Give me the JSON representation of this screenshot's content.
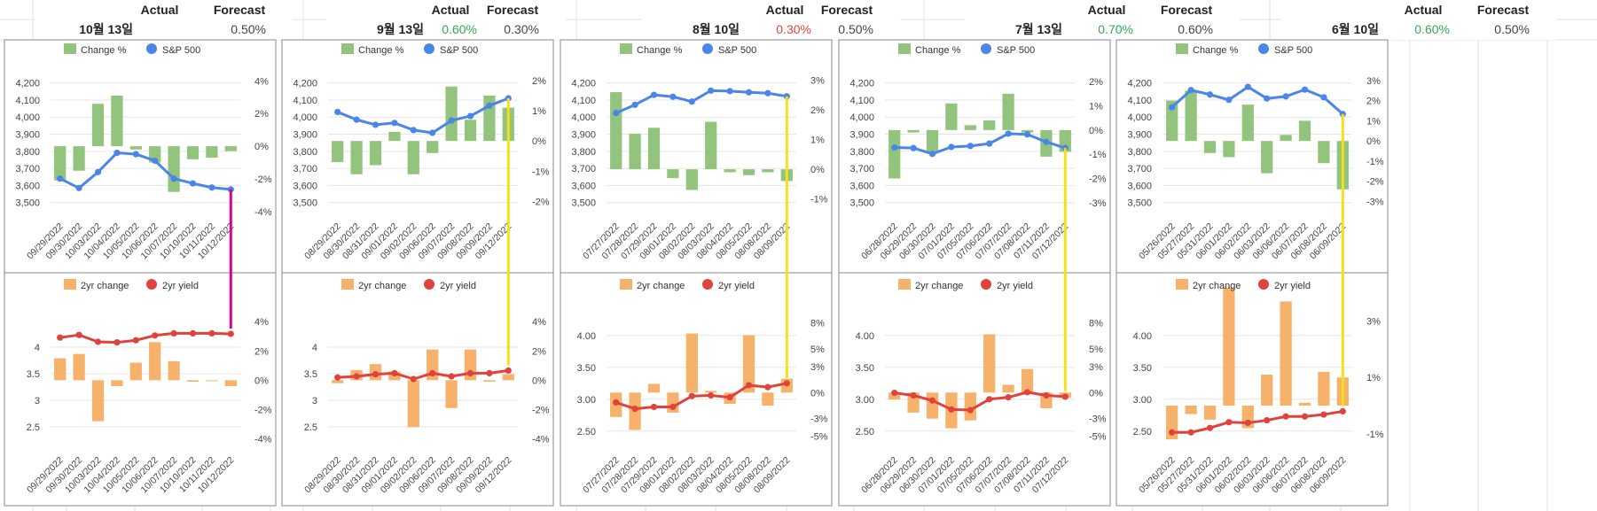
{
  "header_labels": {
    "actual": "Actual",
    "forecast": "Forecast"
  },
  "colors": {
    "change_bar": "#93c47d",
    "sp500_line": "#4a86e8",
    "yield_bar": "#f6b26b",
    "yield_line": "#e0433b",
    "marker_magenta": "#e0008a",
    "marker_yellow": "#f5e01a",
    "actual_up": "#34a853",
    "actual_down": "#ea4335"
  },
  "panels": [
    {
      "date": "10월 13일",
      "actual": "",
      "actual_color": "",
      "forecast": "0.50%",
      "marker_color": "#e0008a",
      "chart_data": [
        {
          "type": "bar+line",
          "legend": [
            "Change %",
            "S&P 500"
          ],
          "x": [
            "09/29/2022",
            "09/30/2022",
            "10/03/2022",
            "10/04/2022",
            "10/05/2022",
            "10/06/2022",
            "10/07/2022",
            "10/10/2022",
            "10/11/2022",
            "10/12/2022"
          ],
          "series": [
            {
              "name": "Change %",
              "axis": "right",
              "values": [
                -2.1,
                -1.5,
                2.6,
                3.1,
                -0.2,
                -1.0,
                -2.8,
                -0.8,
                -0.7,
                -0.3
              ]
            },
            {
              "name": "S&P 500",
              "axis": "left",
              "values": [
                3640,
                3585,
                3678,
                3791,
                3783,
                3745,
                3640,
                3612,
                3588,
                3577
              ]
            }
          ],
          "left_ticks": [
            "4,200",
            "4,100",
            "4,000",
            "3,900",
            "3,800",
            "3,700",
            "3,600",
            "3,500"
          ],
          "left_range": [
            3400,
            4250
          ],
          "right_ticks": [
            "4%",
            "2%",
            "0%",
            "-2%",
            "-4%"
          ],
          "right_range": [
            -4.5,
            4.4
          ]
        },
        {
          "type": "bar+line",
          "legend": [
            "2yr change",
            "2yr yield"
          ],
          "x": [
            "09/29/2022",
            "09/30/2022",
            "10/03/2022",
            "10/04/2022",
            "10/05/2022",
            "10/06/2022",
            "10/07/2022",
            "10/10/2022",
            "10/11/2022",
            "10/12/2022"
          ],
          "series": [
            {
              "name": "2yr change",
              "axis": "right",
              "values": [
                1.5,
                1.8,
                -2.8,
                -0.4,
                1.2,
                2.6,
                1.3,
                -0.1,
                0,
                -0.4
              ]
            },
            {
              "name": "2yr yield",
              "axis": "left",
              "values": [
                4.18,
                4.23,
                4.1,
                4.09,
                4.13,
                4.22,
                4.26,
                4.26,
                4.26,
                4.25
              ]
            }
          ],
          "left_ticks": [
            "4",
            "3.5",
            "3",
            "2.5"
          ],
          "left_range": [
            2.0,
            4.7
          ],
          "right_ticks": [
            "4%",
            "2%",
            "0%",
            "-2%",
            "-4%"
          ],
          "right_range": [
            -5,
            4.8
          ]
        }
      ]
    },
    {
      "date": "9월 13일",
      "actual": "0.60%",
      "actual_color": "#34a853",
      "forecast": "0.30%",
      "marker_color": "#f5e01a",
      "chart_data": [
        {
          "type": "bar+line",
          "legend": [
            "Change %",
            "S&P 500"
          ],
          "x": [
            "08/29/2022",
            "08/30/2022",
            "08/31/2022",
            "09/01/2022",
            "09/02/2022",
            "09/06/2022",
            "09/07/2022",
            "09/08/2022",
            "09/09/2022",
            "09/12/2022"
          ],
          "series": [
            {
              "name": "Change %",
              "axis": "right",
              "values": [
                -0.7,
                -1.1,
                -0.8,
                0.3,
                -1.1,
                -0.4,
                1.8,
                0.7,
                1.5,
                1.1
              ]
            },
            {
              "name": "S&P 500",
              "axis": "left",
              "values": [
                4030,
                3985,
                3955,
                3966,
                3924,
                3908,
                3980,
                4006,
                4067,
                4110
              ]
            }
          ],
          "left_ticks": [
            "4,200",
            "4,100",
            "4,000",
            "3,900",
            "3,800",
            "3,700",
            "3,600",
            "3,500"
          ],
          "left_range": [
            3400,
            4250
          ],
          "right_ticks": [
            "2%",
            "1%",
            "0%",
            "-1%",
            "-2%"
          ],
          "right_range": [
            -2.6,
            2.2
          ]
        },
        {
          "type": "bar+line",
          "legend": [
            "2yr change",
            "2yr yield"
          ],
          "x": [
            "08/29/2022",
            "08/30/2022",
            "08/31/2022",
            "09/01/2022",
            "09/02/2022",
            "09/06/2022",
            "09/07/2022",
            "09/08/2022",
            "09/09/2022",
            "09/12/2022"
          ],
          "series": [
            {
              "name": "2yr change",
              "axis": "right",
              "values": [
                -0.2,
                0.7,
                1.1,
                0.6,
                -3.2,
                2.1,
                -1.9,
                2.1,
                -0.1,
                0.4
              ]
            },
            {
              "name": "2yr yield",
              "axis": "left",
              "values": [
                3.43,
                3.45,
                3.49,
                3.51,
                3.4,
                3.51,
                3.45,
                3.51,
                3.51,
                3.56
              ]
            }
          ],
          "left_ticks": [
            "4",
            "3.5",
            "3",
            "2.5"
          ],
          "left_range": [
            2.0,
            4.7
          ],
          "right_ticks": [
            "4%",
            "2%",
            "0%",
            "-2%",
            "-4%"
          ],
          "right_range": [
            -5,
            4.8
          ]
        }
      ]
    },
    {
      "date": "8월 10일",
      "actual": "0.30%",
      "actual_color": "#ea4335",
      "forecast": "0.50%",
      "marker_color": "#f5e01a",
      "chart_data": [
        {
          "type": "bar+line",
          "legend": [
            "Change %",
            "S&P 500"
          ],
          "x": [
            "07/27/2022",
            "07/28/2022",
            "07/29/2022",
            "08/01/2022",
            "08/02/2022",
            "08/03/2022",
            "08/04/2022",
            "08/05/2022",
            "08/08/2022",
            "08/09/2022"
          ],
          "series": [
            {
              "name": "Change %",
              "axis": "right",
              "values": [
                2.6,
                1.2,
                1.4,
                -0.3,
                -0.7,
                1.6,
                -0.1,
                -0.2,
                -0.1,
                -0.4
              ]
            },
            {
              "name": "S&P 500",
              "axis": "left",
              "values": [
                4024,
                4072,
                4130,
                4119,
                4091,
                4155,
                4152,
                4145,
                4140,
                4122
              ]
            }
          ],
          "left_ticks": [
            "4,200",
            "4,100",
            "4,000",
            "3,900",
            "3,800",
            "3,700",
            "3,600",
            "3,500"
          ],
          "left_range": [
            3400,
            4250
          ],
          "right_ticks": [
            "3%",
            "2%",
            "1%",
            "0%",
            "-1%"
          ],
          "right_range": [
            -1.7,
            3.2
          ]
        },
        {
          "type": "bar+line",
          "legend": [
            "2yr change",
            "2yr yield"
          ],
          "x": [
            "07/27/2022",
            "07/28/2022",
            "07/29/2022",
            "08/01/2022",
            "08/02/2022",
            "08/03/2022",
            "08/04/2022",
            "08/05/2022",
            "08/08/2022",
            "08/09/2022"
          ],
          "series": [
            {
              "name": "2yr change",
              "axis": "right",
              "values": [
                -2.8,
                -4.3,
                1.0,
                -2.3,
                6.8,
                0.2,
                -1.3,
                6.6,
                -1.5,
                1.6
              ]
            },
            {
              "name": "2yr yield",
              "axis": "left",
              "values": [
                2.95,
                2.85,
                2.88,
                2.88,
                3.05,
                3.06,
                3.03,
                3.22,
                3.19,
                3.25
              ]
            }
          ],
          "left_ticks": [
            "4.00",
            "3.50",
            "3.00",
            "2.50"
          ],
          "left_range": [
            2.15,
            4.4
          ],
          "right_ticks": [
            "8%",
            "5%",
            "3%",
            "0%",
            "-3%",
            "-5%"
          ],
          "right_range": [
            -7,
            9.5
          ]
        }
      ]
    },
    {
      "date": "7월 13일",
      "actual": "0.70%",
      "actual_color": "#34a853",
      "forecast": "0.60%",
      "marker_color": "#f5e01a",
      "chart_data": [
        {
          "type": "bar+line",
          "legend": [
            "Change %",
            "S&P 500"
          ],
          "x": [
            "06/28/2022",
            "06/29/2022",
            "06/30/2022",
            "07/01/2022",
            "07/05/2022",
            "07/06/2022",
            "07/07/2022",
            "07/08/2022",
            "07/11/2022",
            "07/12/2022"
          ],
          "series": [
            {
              "name": "Change %",
              "axis": "right",
              "values": [
                -2.0,
                -0.1,
                -0.9,
                1.1,
                0.2,
                0.4,
                1.5,
                -0.1,
                -1.1,
                -0.9
              ]
            },
            {
              "name": "S&P 500",
              "axis": "left",
              "values": [
                3822,
                3819,
                3785,
                3825,
                3831,
                3845,
                3903,
                3899,
                3855,
                3819
              ]
            }
          ],
          "left_ticks": [
            "4,200",
            "4,100",
            "4,000",
            "3,900",
            "3,800",
            "3,700",
            "3,600",
            "3,500"
          ],
          "left_range": [
            3400,
            4250
          ],
          "right_ticks": [
            "2%",
            "1%",
            "0%",
            "-1%",
            "-2%",
            "-3%"
          ],
          "right_range": [
            -3.7,
            2.3
          ]
        },
        {
          "type": "bar+line",
          "legend": [
            "2yr change",
            "2yr yield"
          ],
          "x": [
            "06/28/2022",
            "06/29/2022",
            "06/30/2022",
            "07/01/2022",
            "07/05/2022",
            "07/06/2022",
            "07/07/2022",
            "07/08/2022",
            "07/11/2022",
            "07/12/2022"
          ],
          "series": [
            {
              "name": "2yr change",
              "axis": "right",
              "values": [
                -0.8,
                -2.3,
                -3.0,
                -4.1,
                -3.2,
                6.7,
                0.9,
                2.7,
                -1.8,
                -0.6
              ]
            },
            {
              "name": "2yr yield",
              "axis": "left",
              "values": [
                3.1,
                3.06,
                2.98,
                2.84,
                2.83,
                3.0,
                3.03,
                3.11,
                3.06,
                3.04
              ]
            }
          ],
          "left_ticks": [
            "4.00",
            "3.50",
            "3.00",
            "2.50"
          ],
          "left_range": [
            2.15,
            4.4
          ],
          "right_ticks": [
            "8%",
            "5%",
            "3%",
            "0%",
            "-3%",
            "-5%"
          ],
          "right_range": [
            -7,
            9.5
          ]
        }
      ]
    },
    {
      "date": "6월 10일",
      "actual": "0.60%",
      "actual_color": "#34a853",
      "forecast": "0.50%",
      "marker_color": "#f5e01a",
      "chart_data": [
        {
          "type": "bar+line",
          "legend": [
            "Change %",
            "S&P 500"
          ],
          "x": [
            "05/26/2022",
            "05/27/2022",
            "05/31/2022",
            "06/01/2022",
            "06/02/2022",
            "06/03/2022",
            "06/06/2022",
            "06/07/2022",
            "06/08/2022",
            "06/09/2022"
          ],
          "series": [
            {
              "name": "Change %",
              "axis": "right",
              "values": [
                2.0,
                2.5,
                -0.6,
                -0.8,
                1.8,
                -1.6,
                0.3,
                1.0,
                -1.1,
                -2.4
              ]
            },
            {
              "name": "S&P 500",
              "axis": "left",
              "values": [
                4058,
                4158,
                4132,
                4101,
                4177,
                4109,
                4121,
                4161,
                4116,
                4018
              ]
            }
          ],
          "left_ticks": [
            "4,200",
            "4,100",
            "4,000",
            "3,900",
            "3,800",
            "3,700",
            "3,600",
            "3,500"
          ],
          "left_range": [
            3400,
            4250
          ],
          "right_ticks": [
            "3%",
            "2%",
            "1%",
            "0%",
            "-1%",
            "-2%",
            "-3%"
          ],
          "right_range": [
            -3.9,
            3.3
          ]
        },
        {
          "type": "bar+line",
          "legend": [
            "2yr change",
            "2yr yield"
          ],
          "x": [
            "05/26/2022",
            "05/27/2022",
            "05/31/2022",
            "06/01/2022",
            "06/02/2022",
            "06/03/2022",
            "06/06/2022",
            "06/07/2022",
            "06/08/2022",
            "06/09/2022"
          ],
          "series": [
            {
              "name": "2yr change",
              "axis": "right",
              "values": [
                -1.2,
                -0.3,
                -0.5,
                4.2,
                -0.8,
                1.1,
                3.7,
                0.1,
                1.2,
                1.0
              ]
            },
            {
              "name": "2yr yield",
              "axis": "left",
              "values": [
                2.48,
                2.48,
                2.55,
                2.64,
                2.63,
                2.67,
                2.73,
                2.73,
                2.76,
                2.81
              ]
            }
          ],
          "left_ticks": [
            "4.00",
            "3.50",
            "3.00",
            "2.50"
          ],
          "left_range": [
            2.15,
            4.4
          ],
          "right_ticks": [
            "3%",
            "1%",
            "-1%"
          ],
          "right_range": [
            -1.7,
            3.4
          ]
        }
      ]
    }
  ]
}
